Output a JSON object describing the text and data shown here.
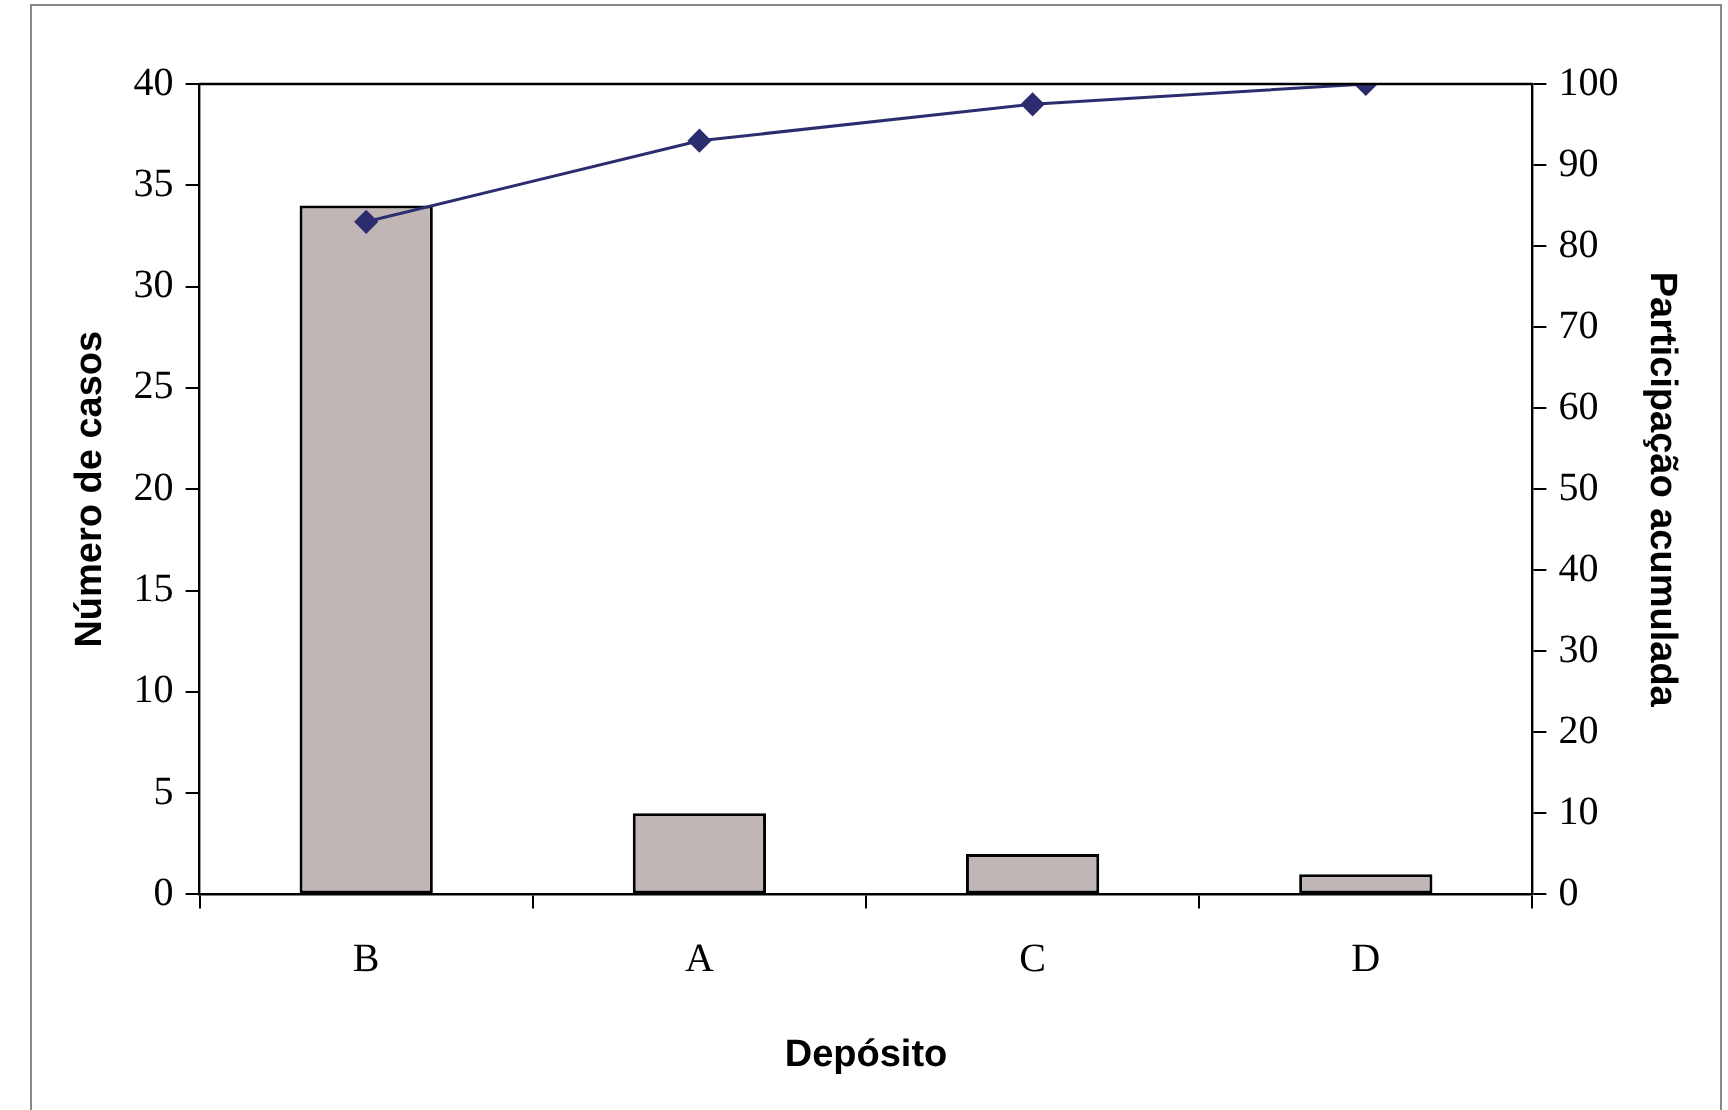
{
  "chart_data": {
    "type": "bar",
    "xlabel": "Depósito",
    "ylabel": "Número de casos",
    "y2label": "Participação acumulada",
    "categories": [
      "B",
      "A",
      "C",
      "D"
    ],
    "series": [
      {
        "color": "#c0b6b6",
        "values": [
          34,
          4,
          2,
          1
        ]
      },
      {
        "type": "line",
        "axis": "y2",
        "color": "#2b2d6e",
        "marker": "diamond",
        "values": [
          83,
          93,
          97.5,
          100
        ]
      }
    ],
    "ylim": [
      0,
      40
    ],
    "yticks": [
      0,
      5,
      10,
      15,
      20,
      25,
      30,
      35,
      40
    ],
    "y2lim": [
      0,
      100
    ],
    "y2ticks": [
      0,
      10,
      20,
      30,
      40,
      50,
      60,
      70,
      80,
      90,
      100
    ],
    "grid": false,
    "legend": false
  }
}
